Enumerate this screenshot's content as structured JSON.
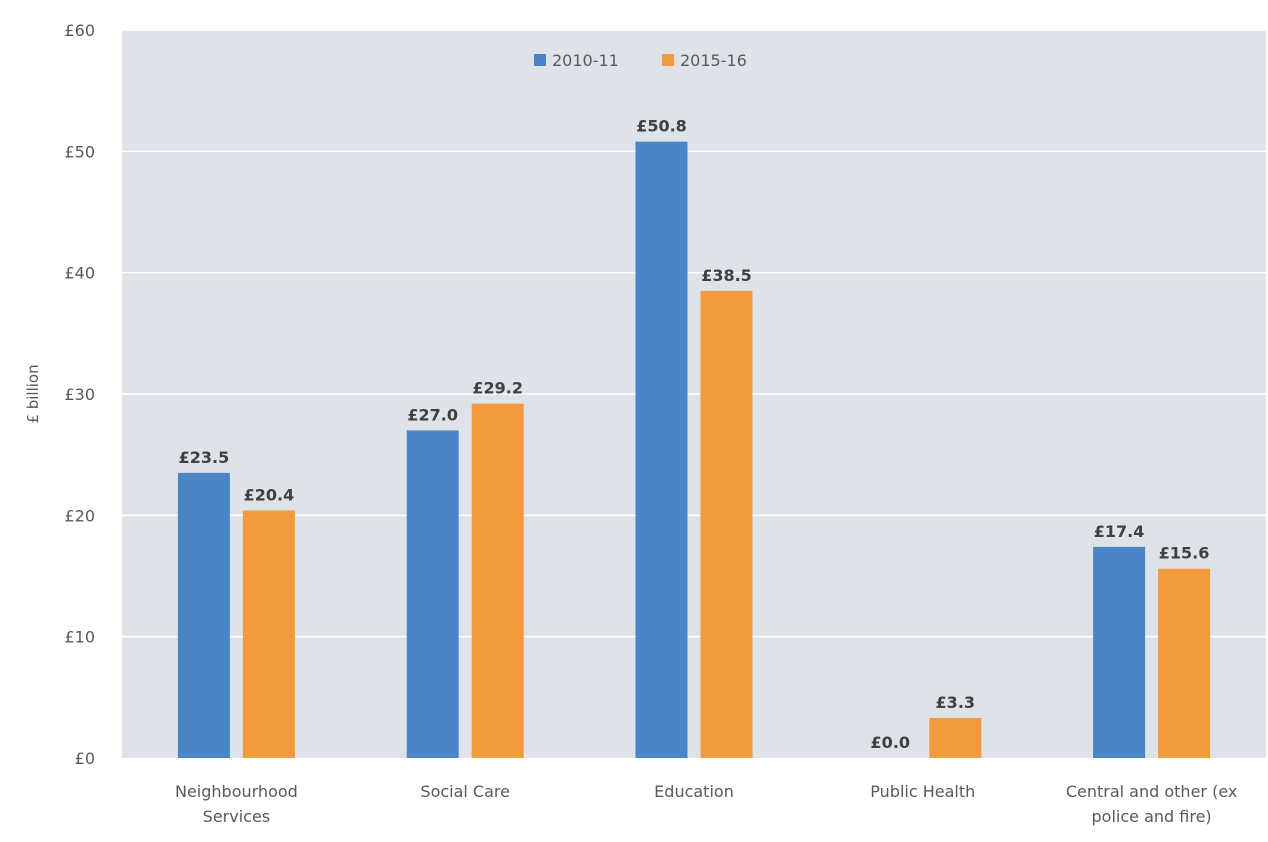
{
  "chart_data": {
    "type": "bar",
    "title": "",
    "xlabel": "",
    "ylabel": "£ billion",
    "ylim": [
      0,
      60
    ],
    "yticks": [
      0,
      10,
      20,
      30,
      40,
      50,
      60
    ],
    "ytick_labels": [
      "£0",
      "£10",
      "£20",
      "£30",
      "£40",
      "£50",
      "£60"
    ],
    "grid": true,
    "legend_position": "top-center",
    "categories": [
      [
        "Neighbourhood",
        "Services"
      ],
      [
        "Social Care"
      ],
      [
        "Education"
      ],
      [
        "Public Health"
      ],
      [
        "Central and other (ex",
        "police and fire)"
      ]
    ],
    "series": [
      {
        "name": "2010-11",
        "color": "#4a86c5",
        "values": [
          23.5,
          27.0,
          50.8,
          0.0,
          17.4
        ],
        "labels": [
          "£23.5",
          "£27.0",
          "£50.8",
          "£0.0",
          "£17.4"
        ]
      },
      {
        "name": "2015-16",
        "color": "#f29a3d",
        "values": [
          20.4,
          29.2,
          38.5,
          3.3,
          15.6
        ],
        "labels": [
          "£20.4",
          "£29.2",
          "£38.5",
          "£3.3",
          "£15.6"
        ]
      }
    ]
  },
  "colors": {
    "plot_background": "#dde3e8",
    "gridline": "#ffffff",
    "tick_text": "#595959",
    "data_label_text": "#404040"
  }
}
